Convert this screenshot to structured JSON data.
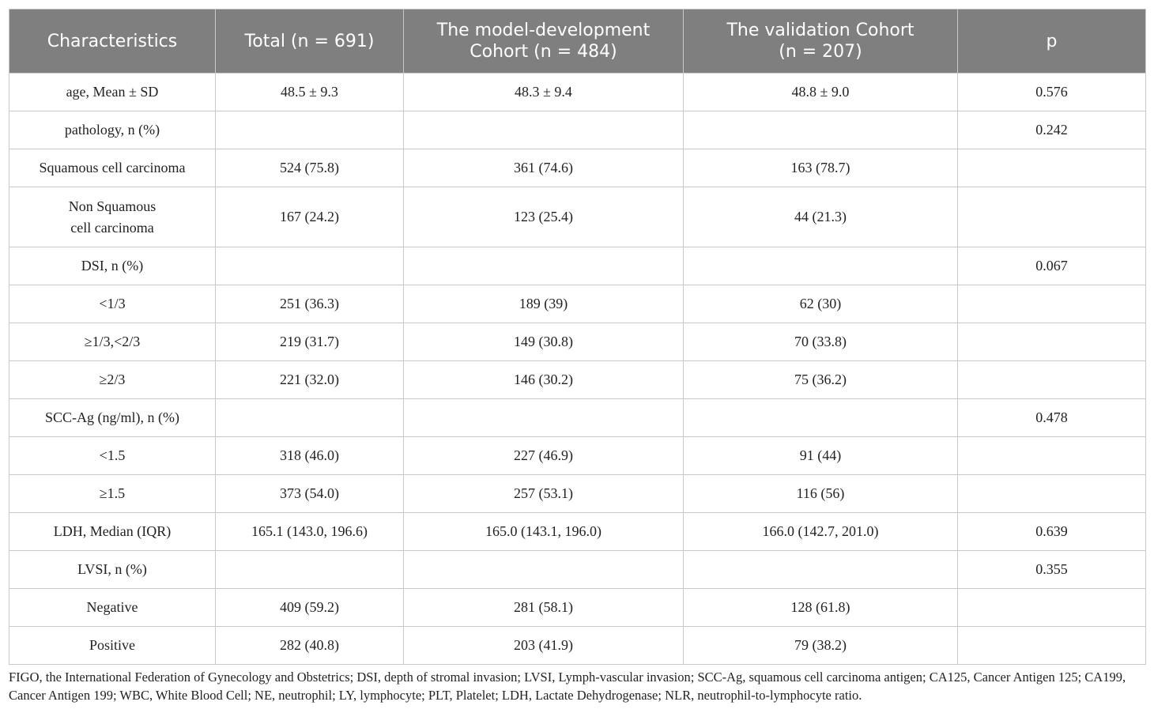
{
  "table": {
    "header": [
      "Characteristics",
      "Total (n = 691)",
      "The model-development\nCohort (n = 484)",
      "The validation Cohort\n(n = 207)",
      "p"
    ],
    "rows": [
      [
        "age, Mean ± SD",
        "48.5 ± 9.3",
        "48.3 ± 9.4",
        "48.8 ± 9.0",
        "0.576"
      ],
      [
        "pathology, n (%)",
        null,
        null,
        null,
        "0.242"
      ],
      [
        "Squamous cell carcinoma",
        "524 (75.8)",
        "361 (74.6)",
        "163 (78.7)",
        null
      ],
      [
        "Non Squamous\ncell carcinoma",
        "167 (24.2)",
        "123 (25.4)",
        "44 (21.3)",
        null
      ],
      [
        "DSI, n (%)",
        null,
        null,
        null,
        "0.067"
      ],
      [
        "<1/3",
        "251 (36.3)",
        "189 (39)",
        "62 (30)",
        null
      ],
      [
        "≥1/3,<2/3",
        "219 (31.7)",
        "149 (30.8)",
        "70 (33.8)",
        null
      ],
      [
        "≥2/3",
        "221 (32.0)",
        "146 (30.2)",
        "75 (36.2)",
        null
      ],
      [
        "SCC-Ag (ng/ml), n (%)",
        null,
        null,
        null,
        "0.478"
      ],
      [
        "<1.5",
        "318 (46.0)",
        "227 (46.9)",
        "91 (44)",
        null
      ],
      [
        "≥1.5",
        "373 (54.0)",
        "257 (53.1)",
        "116 (56)",
        null
      ],
      [
        "LDH, Median (IQR)",
        "165.1 (143.0, 196.6)",
        "165.0 (143.1, 196.0)",
        "166.0 (142.7, 201.0)",
        "0.639"
      ],
      [
        "LVSI, n (%)",
        null,
        null,
        null,
        "0.355"
      ],
      [
        "Negative",
        "409 (59.2)",
        "281 (58.1)",
        "128 (61.8)",
        null
      ],
      [
        "Positive",
        "282 (40.8)",
        "203 (41.9)",
        "79 (38.2)",
        null
      ]
    ],
    "footnote": "FIGO, the International Federation of Gynecology and Obstetrics; DSI, depth of stromal invasion; LVSI, Lymph-vascular invasion; SCC-Ag, squamous cell carcinoma antigen; CA125, Cancer Antigen 125; CA199, Cancer Antigen 199; WBC, White Blood Cell; NE, neutrophil; LY, lymphocyte; PLT, Platelet; LDH, Lactate Dehydrogenase; NLR, neutrophil-to-lymphocyte ratio."
  }
}
